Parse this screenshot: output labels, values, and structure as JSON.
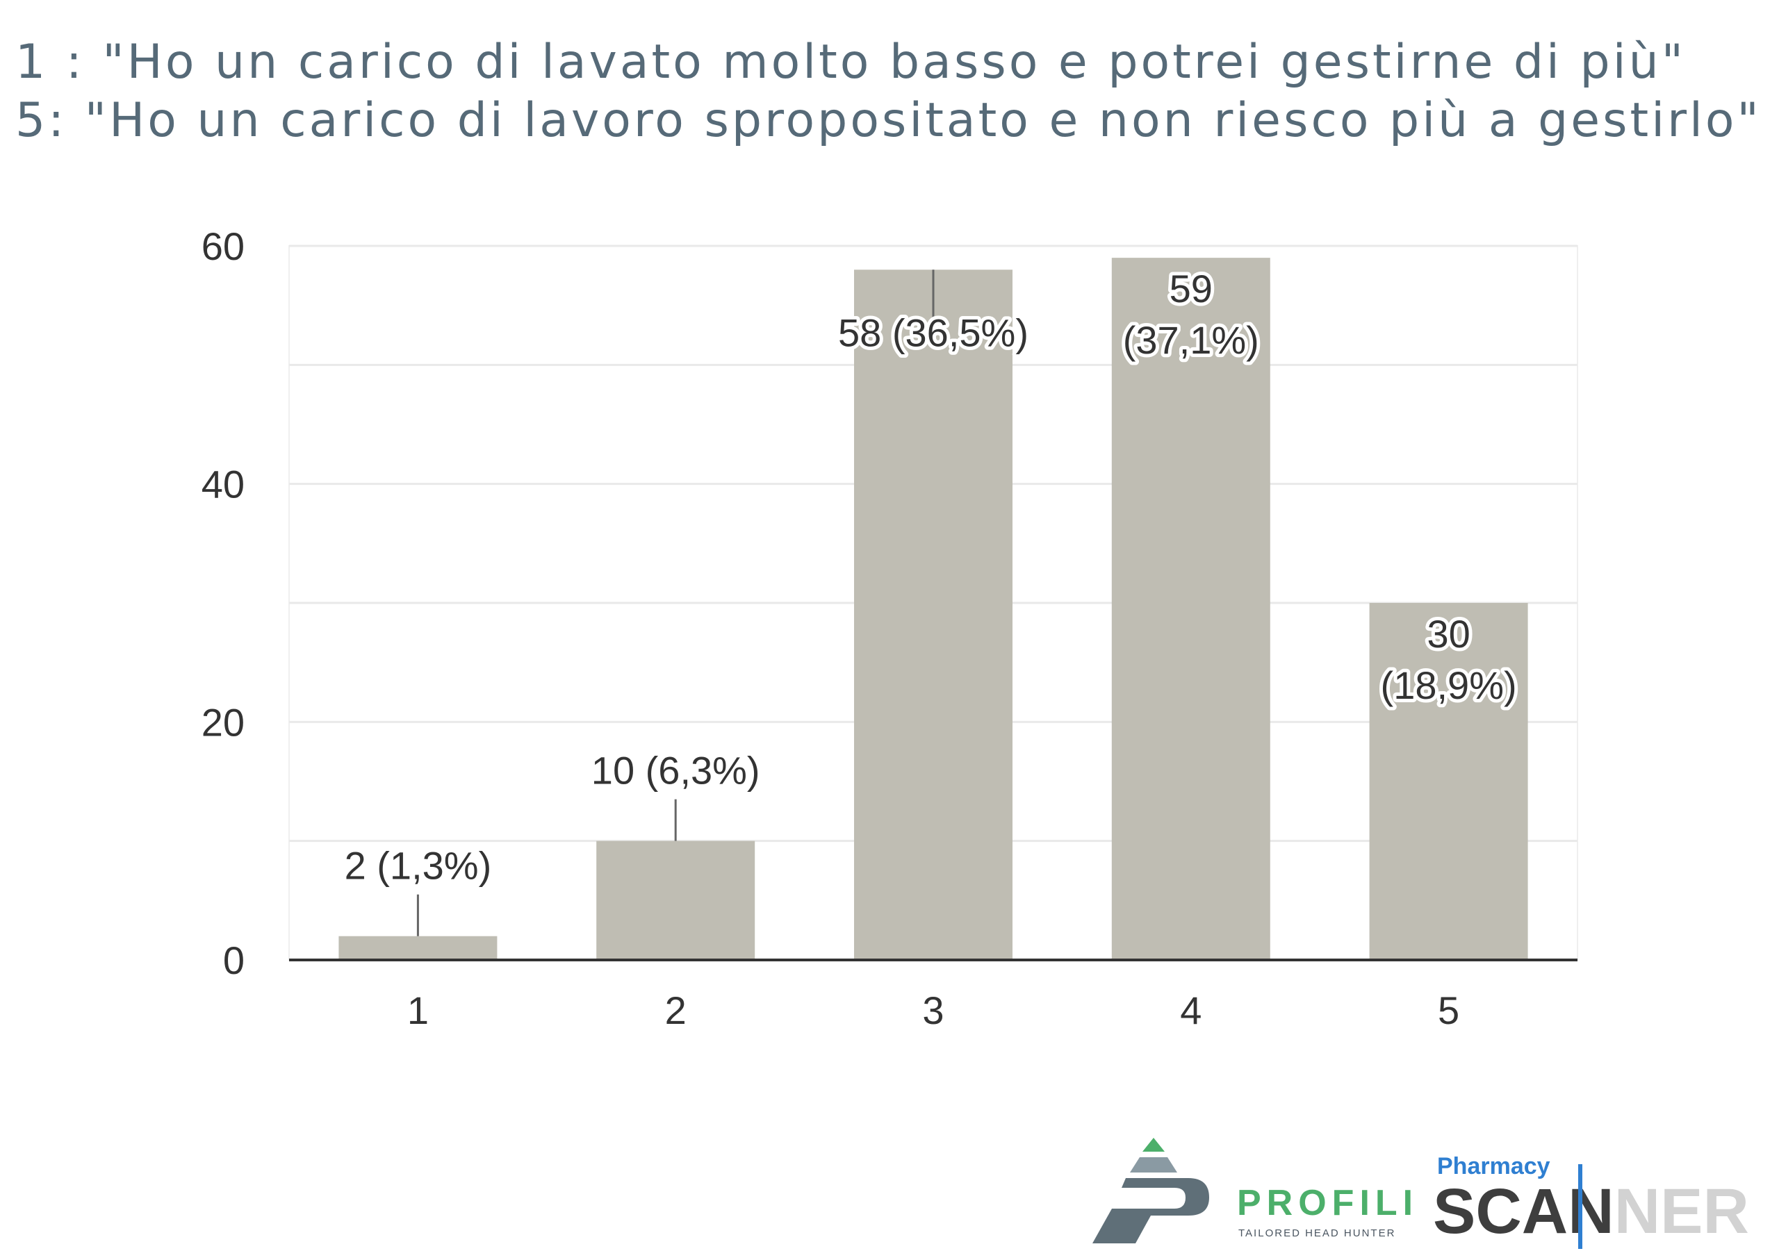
{
  "caption": {
    "line1": "1 : \"Ho un carico di lavato molto basso e potrei gestirne di più\"",
    "line2": "5: \"Ho un carico di lavoro spropositato e non riesco più a gestirlo\""
  },
  "colors": {
    "caption_text": "#566a78",
    "bar": "#bfbdb3",
    "gridline": "#e9e9e9",
    "axis": "#333333",
    "profili_green": "#4caf6a",
    "profili_dark": "#5f6f78",
    "scanner_blue": "#2f7fd1"
  },
  "chart_data": {
    "type": "bar",
    "categories": [
      "1",
      "2",
      "3",
      "4",
      "5"
    ],
    "values": [
      2,
      10,
      58,
      59,
      30
    ],
    "data_labels": [
      [
        "2 (1,3%)"
      ],
      [
        "10 (6,3%)"
      ],
      [
        "58 (36,5%)"
      ],
      [
        "59",
        "(37,1%)"
      ],
      [
        "30",
        "(18,9%)"
      ]
    ],
    "label_placement": [
      "above",
      "above",
      "inside",
      "inside",
      "inside"
    ],
    "yticks": [
      0,
      20,
      40,
      60
    ],
    "ylim": [
      0,
      60
    ],
    "grid": true,
    "title": "",
    "xlabel": "",
    "ylabel": ""
  },
  "logos": {
    "profili_name": "PROFILI",
    "profili_tagline": "TAILORED HEAD HUNTER",
    "pharmacy": "Pharmacy",
    "scanner_dark": "SCAN",
    "scanner_light": "NER",
    "profili_icon": "mountain-p-icon"
  }
}
